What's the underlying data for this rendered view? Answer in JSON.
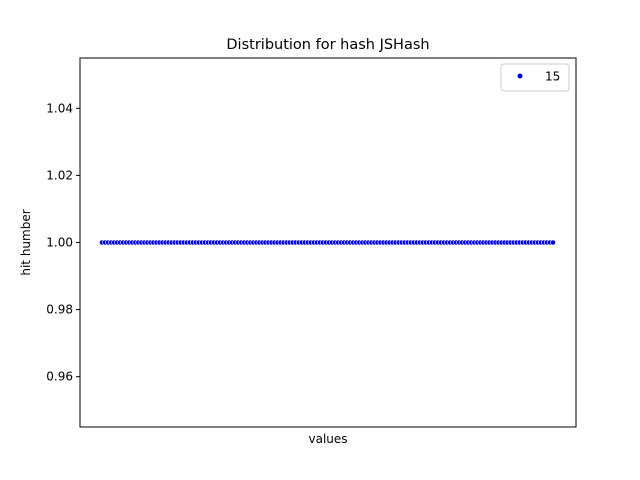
{
  "chart_data": {
    "type": "scatter",
    "title": "Distribution for hash JSHash",
    "xlabel": "values",
    "ylabel": "hit humber",
    "ylim": [
      0.945,
      1.055
    ],
    "yticks": [
      0.96,
      0.98,
      1.0,
      1.02,
      1.04
    ],
    "ytick_labels": [
      "0.96",
      "0.98",
      "1.00",
      "1.02",
      "1.04"
    ],
    "xticks_visible": false,
    "grid": false,
    "legend": {
      "placement": "top-right",
      "entries": [
        {
          "label": "15",
          "color": "#0000ff"
        }
      ]
    },
    "series": [
      {
        "name": "15",
        "color": "#0000ff",
        "point_count": 150,
        "y_value": 1.0
      }
    ]
  }
}
